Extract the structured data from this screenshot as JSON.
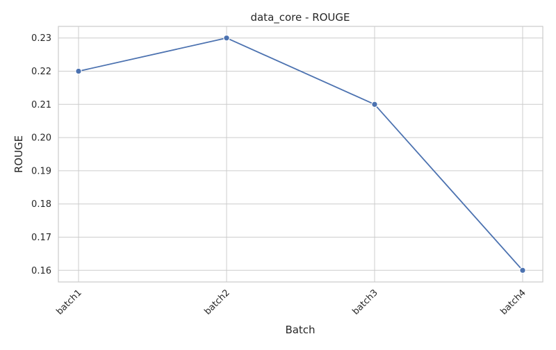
{
  "chart_data": {
    "type": "line",
    "title": "data_core - ROUGE",
    "xlabel": "Batch",
    "ylabel": "ROUGE",
    "categories": [
      "batch1",
      "batch2",
      "batch3",
      "batch4"
    ],
    "series": [
      {
        "values": [
          0.22,
          0.23,
          0.21,
          0.16
        ],
        "color": "#4c72b0",
        "marker": "circle"
      }
    ],
    "ylim": [
      0.1565,
      0.2335
    ],
    "yticks": [
      0.16,
      0.17,
      0.18,
      0.19,
      0.2,
      0.21,
      0.22,
      0.23
    ],
    "ytick_labels": [
      "0.16",
      "0.17",
      "0.18",
      "0.19",
      "0.20",
      "0.21",
      "0.22",
      "0.23"
    ],
    "grid": true,
    "xtick_rotation_deg": 45
  }
}
